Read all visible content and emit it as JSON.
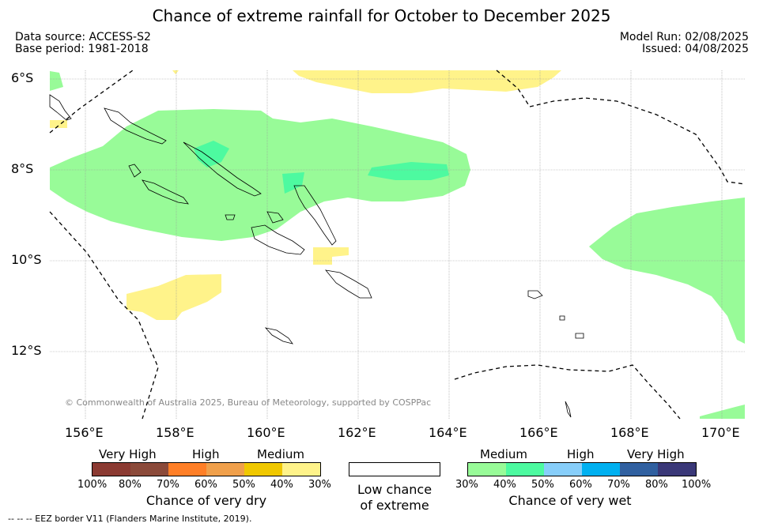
{
  "title": "Chance of extreme rainfall for October to December 2025",
  "data_source": "Data source: ACCESS-S2",
  "base_period": "Base period: 1981-2018",
  "model_run": "Model Run: 02/08/2025",
  "issued": "Issued: 04/08/2025",
  "lat_labels": [
    "6°S",
    "8°S",
    "10°S",
    "12°S"
  ],
  "lon_labels": [
    "156°E",
    "158°E",
    "160°E",
    "162°E",
    "164°E",
    "166°E",
    "168°E",
    "170°E"
  ],
  "copyright": "© Commonwealth of Australia 2025, Bureau of Meteorology, supported by COSPPac",
  "legend_dry": {
    "categories": [
      "Very High",
      "High",
      "Medium"
    ],
    "ticks": [
      "100%",
      "80%",
      "70%",
      "60%",
      "50%",
      "40%",
      "30%"
    ],
    "colors": [
      "#8b3a32",
      "#8b4a3a",
      "#ff7f27",
      "#f0a04b",
      "#f0c800",
      "#fff38a"
    ],
    "label": "Chance of very dry"
  },
  "legend_low": {
    "label_line1": "Low chance",
    "label_line2": "of extreme"
  },
  "legend_wet": {
    "categories": [
      "Medium",
      "High",
      "Very High"
    ],
    "ticks": [
      "30%",
      "40%",
      "50%",
      "60%",
      "70%",
      "80%",
      "100%"
    ],
    "colors": [
      "#98fb98",
      "#4dfaa0",
      "#87cefa",
      "#00b0f0",
      "#3060a0",
      "#3a3878"
    ],
    "label": "Chance of very wet"
  },
  "footnote": "--  --  -- EEZ border V11 (Flanders Marine Institute, 2019)."
}
